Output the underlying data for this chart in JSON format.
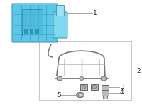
{
  "bg_color": "#ffffff",
  "abs_color": "#5bc8e8",
  "abs_edge": "#4499bb",
  "abs_detail": "#2277aa",
  "bracket_color": "#aaaaaa",
  "bracket_edge": "#777777",
  "small_part_color": "#bbbbbb",
  "small_part_edge": "#666666",
  "line_color": "#999999",
  "label_color": "#222222",
  "font_size": 6.5,
  "label1": "1",
  "label2": "2",
  "label3": "3",
  "label4": "4",
  "label5": "5"
}
